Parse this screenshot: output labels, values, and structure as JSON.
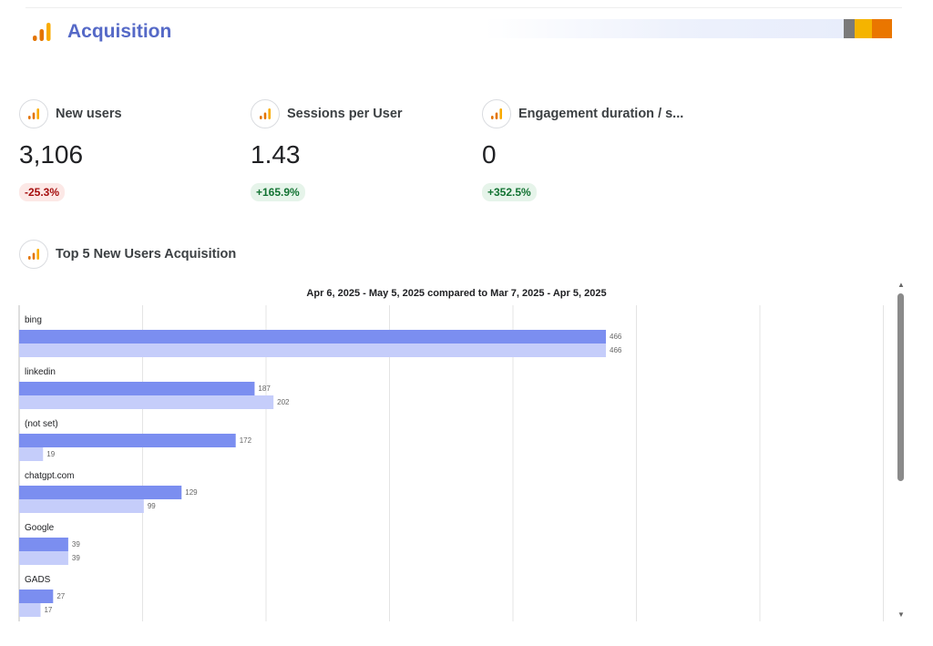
{
  "header": {
    "title": "Acquisition"
  },
  "brand": {
    "colors": [
      "#7a7a7a",
      "#f5b400",
      "#ea7600"
    ]
  },
  "logo_colors": {
    "bar_light": "#f9ab00",
    "bar_dark": "#e37400"
  },
  "kpis": [
    {
      "label": "New users",
      "value": "3,106",
      "change": "-25.3%",
      "trend": "negative"
    },
    {
      "label": "Sessions per User",
      "value": "1.43",
      "change": "+165.9%",
      "trend": "positive"
    },
    {
      "label": "Engagement duration / s...",
      "value": "0",
      "change": "+352.5%",
      "trend": "positive"
    }
  ],
  "chart_section": {
    "title": "Top 5 New Users Acquisition",
    "date_range": "Apr 6, 2025 - May 5, 2025 compared to Mar 7, 2025 - Apr 5, 2025"
  },
  "chart_data": {
    "type": "bar",
    "orientation": "horizontal",
    "categories": [
      "bing",
      "linkedin",
      "(not set)",
      "chatgpt.com",
      "Google",
      "GADS"
    ],
    "series": [
      {
        "values": [
          466,
          187,
          172,
          129,
          39,
          27
        ],
        "color": "#7b8ef0"
      },
      {
        "values": [
          466,
          202,
          19,
          99,
          39,
          17
        ],
        "color": "#c5cdfa"
      }
    ],
    "xlim": [
      0,
      700
    ],
    "grid": true
  }
}
